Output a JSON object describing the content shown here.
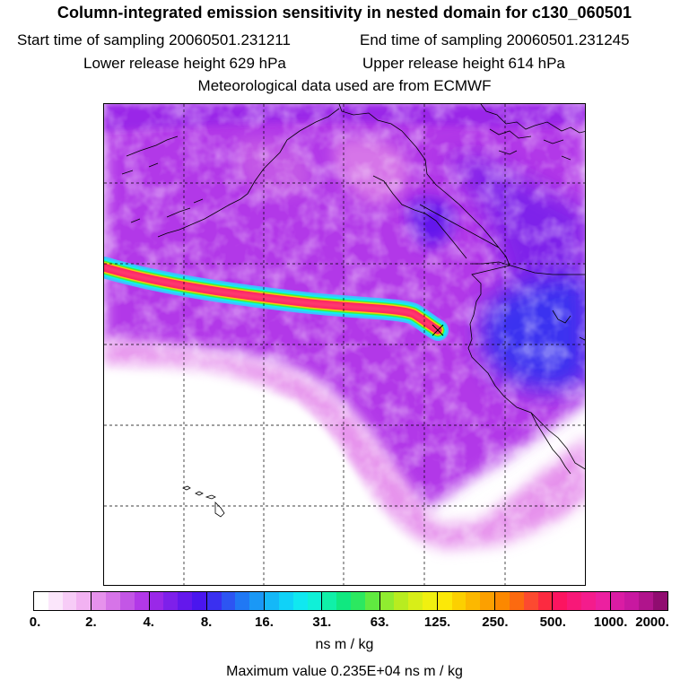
{
  "header": {
    "title": "Column-integrated emission sensitivity in nested domain for c130_060501",
    "start_label": "Start time of sampling 20060501.231211",
    "end_label": "End time of sampling 20060501.231245",
    "lower_label": "Lower release height  629 hPa",
    "upper_label": "Upper release height  614 hPa",
    "met_label": "Meteorological data used are from ECMWF"
  },
  "legend": {
    "ticks": [
      "0.",
      "2.",
      "4.",
      "8.",
      "16.",
      "31.",
      "63.",
      "125.",
      "250.",
      "500.",
      "1000.",
      "2000."
    ],
    "units": "ns m / kg",
    "max_value_label": "Maximum value  0.235E+04 ns m / kg"
  },
  "colors": {
    "segments": [
      [
        "#ffffff",
        "#fbe6fb",
        "#f7ccf7",
        "#f2b2f2"
      ],
      [
        "#e692ec",
        "#d674e8",
        "#c356e6",
        "#b238e8"
      ],
      [
        "#9a28e8",
        "#7e20ea",
        "#6418ec",
        "#4a16ee"
      ],
      [
        "#3a30f0",
        "#2d55f2",
        "#2078f4",
        "#1a98f6"
      ],
      [
        "#14b8f8",
        "#10d2f8",
        "#10e8f0",
        "#10f0d8"
      ],
      [
        "#10f0a8",
        "#10e880",
        "#2ce860",
        "#60ea40"
      ],
      [
        "#90ec30",
        "#b8ec20",
        "#d8ee18",
        "#f0f010"
      ],
      [
        "#fce808",
        "#fcd000",
        "#fcb800",
        "#fca000"
      ],
      [
        "#fc8800",
        "#fc6a10",
        "#fc4a30",
        "#fc2a40"
      ],
      [
        "#fc1460",
        "#f81878",
        "#f41c8c",
        "#ec20a0"
      ],
      [
        "#da1ca4",
        "#c818a0",
        "#b0148c",
        "#900c70"
      ]
    ],
    "plume": {
      "outer": "#40c0ff",
      "cyan": "#10f0f0",
      "green": "#40f040",
      "yellow": "#fcd000",
      "core": "#fc2060",
      "center": "#ff3a70"
    }
  }
}
